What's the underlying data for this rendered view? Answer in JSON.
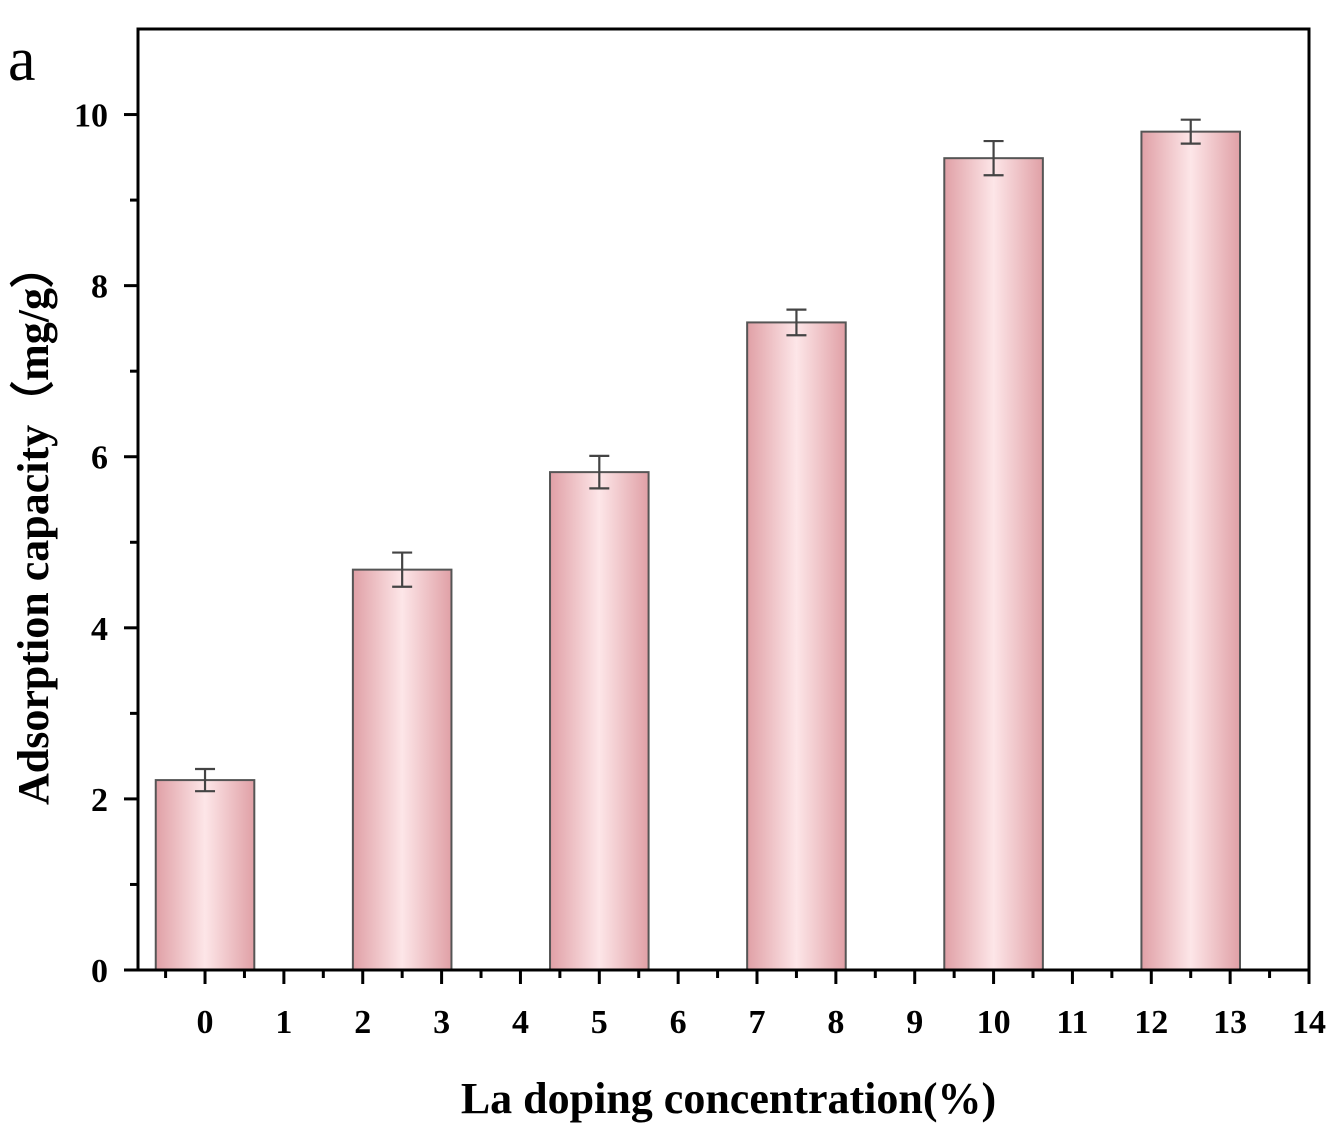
{
  "panel_label": "a",
  "chart_data": {
    "type": "bar",
    "title": "",
    "xlabel": "La doping concentration(%)",
    "ylabel": "Adsorption capacity（mg/g）",
    "x_positions": [
      0,
      2.5,
      5,
      7.5,
      10,
      12.5
    ],
    "values": [
      2.22,
      4.68,
      5.82,
      7.57,
      9.49,
      9.8
    ],
    "errors": [
      0.13,
      0.2,
      0.19,
      0.15,
      0.2,
      0.14
    ],
    "xlim": [
      -0.85,
      14
    ],
    "ylim": [
      0,
      11
    ],
    "x_ticks": [
      0,
      1,
      2,
      3,
      4,
      5,
      6,
      7,
      8,
      9,
      10,
      11,
      12,
      13,
      14
    ],
    "x_tick_labels": [
      "0",
      "1",
      "2",
      "3",
      "4",
      "5",
      "6",
      "7",
      "8",
      "9",
      "10",
      "11",
      "12",
      "13",
      "14"
    ],
    "y_ticks": [
      0,
      2,
      4,
      6,
      8,
      10
    ],
    "y_tick_labels": [
      "0",
      "2",
      "4",
      "6",
      "8",
      "10"
    ],
    "bar_width": 1.25,
    "grid": false,
    "legend": "none",
    "colors": {
      "bar_edge": "#e0a0a6",
      "bar_center": "#fde6e8",
      "bar_outline": "#555555",
      "error_bar": "#444444",
      "axis": "#000000"
    }
  }
}
